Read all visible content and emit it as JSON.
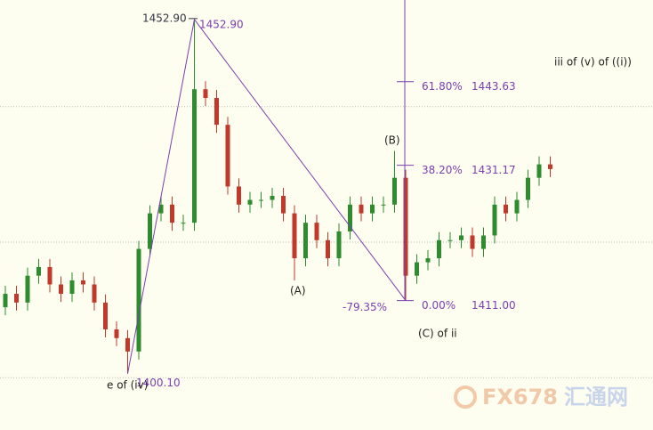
{
  "chart_data": {
    "type": "candlestick",
    "up_color": "#2e8b2e",
    "down_color": "#c0392b",
    "wave_color": "#7a3fb0",
    "background": "#fefef0",
    "ylim": [
      1391.7,
      1455.8
    ],
    "hlines": [
      1439.9,
      1419.7,
      1399.5
    ],
    "candles": [
      [
        1410.0,
        1413.2,
        1408.8,
        1412.0
      ],
      [
        1412.0,
        1413.2,
        1409.5,
        1410.7
      ],
      [
        1410.7,
        1415.9,
        1409.5,
        1414.7
      ],
      [
        1414.7,
        1417.2,
        1413.5,
        1416.0
      ],
      [
        1416.0,
        1417.2,
        1412.2,
        1413.4
      ],
      [
        1413.4,
        1414.6,
        1410.8,
        1412.0
      ],
      [
        1412.0,
        1415.2,
        1410.8,
        1414.0
      ],
      [
        1414.0,
        1415.2,
        1412.2,
        1413.4
      ],
      [
        1413.4,
        1414.6,
        1409.5,
        1410.7
      ],
      [
        1410.7,
        1411.9,
        1405.5,
        1406.7
      ],
      [
        1406.7,
        1407.9,
        1404.2,
        1405.4
      ],
      [
        1405.4,
        1406.6,
        1400.1,
        1403.4
      ],
      [
        1403.4,
        1419.9,
        1402.2,
        1418.7
      ],
      [
        1418.7,
        1425.2,
        1417.5,
        1424.0
      ],
      [
        1424.0,
        1426.5,
        1422.8,
        1425.3
      ],
      [
        1425.3,
        1426.5,
        1421.4,
        1422.6
      ],
      [
        1422.6,
        1423.8,
        1421.4,
        1422.6
      ],
      [
        1422.6,
        1452.9,
        1421.4,
        1442.5
      ],
      [
        1442.5,
        1443.7,
        1440.0,
        1441.2
      ],
      [
        1441.2,
        1442.4,
        1436.0,
        1437.2
      ],
      [
        1437.2,
        1438.4,
        1426.8,
        1428.0
      ],
      [
        1428.0,
        1429.2,
        1424.1,
        1425.3
      ],
      [
        1425.3,
        1427.2,
        1424.1,
        1426.0
      ],
      [
        1426.0,
        1427.2,
        1424.8,
        1426.0
      ],
      [
        1426.0,
        1427.8,
        1424.8,
        1426.6
      ],
      [
        1426.6,
        1427.8,
        1422.8,
        1424.0
      ],
      [
        1424.0,
        1425.2,
        1414.0,
        1417.3
      ],
      [
        1417.3,
        1423.8,
        1416.1,
        1422.6
      ],
      [
        1422.6,
        1423.8,
        1418.8,
        1420.0
      ],
      [
        1420.0,
        1421.2,
        1416.1,
        1417.3
      ],
      [
        1417.3,
        1422.5,
        1416.1,
        1421.3
      ],
      [
        1421.3,
        1426.5,
        1420.1,
        1425.3
      ],
      [
        1425.3,
        1426.5,
        1422.8,
        1424.0
      ],
      [
        1424.0,
        1426.5,
        1422.8,
        1425.3
      ],
      [
        1425.3,
        1426.5,
        1424.1,
        1425.3
      ],
      [
        1425.3,
        1433.3,
        1424.1,
        1429.3
      ],
      [
        1429.3,
        1430.5,
        1411.0,
        1414.7
      ],
      [
        1414.7,
        1417.9,
        1413.5,
        1416.7
      ],
      [
        1416.7,
        1418.5,
        1415.5,
        1417.3
      ],
      [
        1417.3,
        1421.2,
        1416.1,
        1420.0
      ],
      [
        1420.0,
        1421.2,
        1418.8,
        1420.0
      ],
      [
        1420.0,
        1421.9,
        1418.8,
        1420.7
      ],
      [
        1420.7,
        1421.9,
        1417.5,
        1418.7
      ],
      [
        1418.7,
        1421.9,
        1417.5,
        1420.7
      ],
      [
        1420.7,
        1426.5,
        1419.5,
        1425.3
      ],
      [
        1425.3,
        1426.5,
        1422.8,
        1424.0
      ],
      [
        1424.0,
        1427.2,
        1422.8,
        1426.0
      ],
      [
        1426.0,
        1430.5,
        1424.8,
        1429.3
      ],
      [
        1429.3,
        1432.5,
        1428.1,
        1431.3
      ],
      [
        1431.3,
        1432.5,
        1429.4,
        1430.6
      ]
    ],
    "peak": {
      "value": 1452.9,
      "label": "1452.90"
    },
    "low": {
      "value": 1400.1,
      "label": "1400.10"
    },
    "fib_levels": [
      {
        "ratio": {
          "value": 61.8,
          "label": "61.80%"
        },
        "price": 1443.63
      },
      {
        "ratio": {
          "value": 38.2,
          "label": "38.20%"
        },
        "price": 1431.17
      },
      {
        "ratio": {
          "value": 0,
          "label": "0.00%"
        },
        "price": {
          "value": 1411,
          "label": "1411.00"
        }
      }
    ],
    "extension_label": "-79.35%",
    "annotations": {
      "low_wave": "e of (iv)",
      "a": "(A)",
      "b": "(B)",
      "c": "(C) of ii",
      "current": "iii of (v) of ((i))"
    },
    "watermark": "FX678",
    "watermark_cn": "汇通网"
  }
}
